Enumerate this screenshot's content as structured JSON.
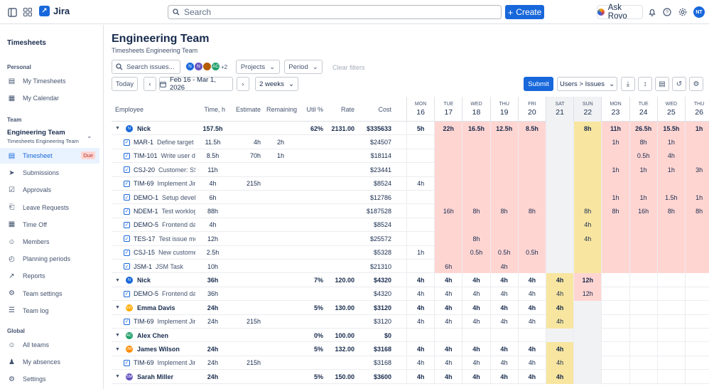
{
  "app": {
    "name": "Jira"
  },
  "topbar": {
    "search_placeholder": "Search",
    "create_label": "Create",
    "rovo_label": "Ask Rovo",
    "user_initials": "NT"
  },
  "sidebar": {
    "title": "Timesheets",
    "personal_label": "Personal",
    "personal": [
      "My Timesheets",
      "My Calendar"
    ],
    "team_label": "Team",
    "team_name": "Engineering Team",
    "team_sub": "Timesheets Engineering Team",
    "team_items": [
      {
        "label": "Timesheet",
        "icon": "table-icon"
      },
      {
        "label": "Submissions",
        "icon": "send-icon"
      },
      {
        "label": "Approvals",
        "icon": "check-square-icon"
      },
      {
        "label": "Leave Requests",
        "icon": "inbox-icon"
      },
      {
        "label": "Time Off",
        "icon": "calendar-icon"
      },
      {
        "label": "Members",
        "icon": "people-icon"
      },
      {
        "label": "Planning periods",
        "icon": "clock-icon"
      },
      {
        "label": "Reports",
        "icon": "chart-icon"
      },
      {
        "label": "Team settings",
        "icon": "gear-icon"
      },
      {
        "label": "Team log",
        "icon": "list-icon"
      }
    ],
    "due_badge": "Due",
    "global_label": "Global",
    "global": [
      "All teams",
      "My absences",
      "Settings"
    ]
  },
  "page": {
    "title": "Engineering Team",
    "subtitle": "Timesheets Engineering Team"
  },
  "filters": {
    "search_placeholder": "Search issues...",
    "avatars": [
      "N",
      "N",
      "",
      "AC"
    ],
    "more": "+2",
    "projects": "Projects",
    "period": "Period",
    "clear": "Clear filters"
  },
  "toolbar": {
    "today": "Today",
    "date_range": "Feb 16 - Mar 1, 2026",
    "range": "2 weeks",
    "submit": "Submit",
    "group_by": "Users > Issues"
  },
  "columns": {
    "employee": "Employee",
    "time": "Time, h",
    "estimate": "Estimate",
    "remaining": "Remaining",
    "util": "Util %",
    "rate": "Rate",
    "cost": "Cost"
  },
  "days": [
    {
      "dow": "MON",
      "d": "16",
      "kind": "w"
    },
    {
      "dow": "TUE",
      "d": "17",
      "kind": "w"
    },
    {
      "dow": "WED",
      "d": "18",
      "kind": "w"
    },
    {
      "dow": "THU",
      "d": "19",
      "kind": "w"
    },
    {
      "dow": "FRI",
      "d": "20",
      "kind": "w"
    },
    {
      "dow": "SAT",
      "d": "21",
      "kind": "sat"
    },
    {
      "dow": "SUN",
      "d": "22",
      "kind": "sun"
    },
    {
      "dow": "MON",
      "d": "23",
      "kind": "w"
    },
    {
      "dow": "TUE",
      "d": "24",
      "kind": "w"
    },
    {
      "dow": "WED",
      "d": "25",
      "kind": "w"
    },
    {
      "dow": "THU",
      "d": "26",
      "kind": "w"
    }
  ],
  "rows": [
    {
      "type": "user",
      "name": "Nick",
      "initials": "N",
      "color": "#1868db",
      "time": "157.5h",
      "est": "",
      "rem": "",
      "util": "62%",
      "rate": "2131.00",
      "cost": "$335633",
      "days": [
        "5h",
        "22h",
        "16.5h",
        "12.5h",
        "8.5h",
        "",
        "8h",
        "11h",
        "26.5h",
        "15.5h",
        "1h"
      ],
      "over": true
    },
    {
      "type": "issue",
      "key": "MAR-1",
      "desc": "Define target a",
      "time": "11.5h",
      "est": "4h",
      "rem": "2h",
      "cost": "$24507",
      "days": [
        "",
        "",
        "",
        "",
        "",
        "",
        "",
        "1h",
        "8h",
        "1h",
        ""
      ],
      "over": true
    },
    {
      "type": "issue",
      "key": "TIM-101",
      "desc": "Write user do",
      "time": "8.5h",
      "est": "70h",
      "rem": "1h",
      "cost": "$18114",
      "days": [
        "",
        "",
        "",
        "",
        "",
        "",
        "",
        "",
        "0.5h",
        "4h",
        ""
      ],
      "over": true
    },
    {
      "type": "issue",
      "key": "CSJ-20",
      "desc": "Customer: SS",
      "time": "11h",
      "est": "",
      "rem": "",
      "cost": "$23441",
      "days": [
        "",
        "",
        "",
        "",
        "",
        "",
        "",
        "1h",
        "1h",
        "1h",
        "3h"
      ],
      "over": true
    },
    {
      "type": "issue",
      "key": "TIM-69",
      "desc": "Implement Jir",
      "time": "4h",
      "est": "215h",
      "rem": "",
      "cost": "$8524",
      "days": [
        "4h",
        "",
        "",
        "",
        "",
        "",
        "",
        "",
        "",
        "",
        ""
      ],
      "over": true
    },
    {
      "type": "issue",
      "key": "DEMO-1",
      "desc": "Setup develo",
      "time": "6h",
      "est": "",
      "rem": "",
      "cost": "$12786",
      "days": [
        "",
        "",
        "",
        "",
        "",
        "",
        "",
        "1h",
        "1h",
        "1.5h",
        "1h"
      ],
      "over": true
    },
    {
      "type": "issue",
      "key": "NDEM-1",
      "desc": "Test worklog",
      "time": "88h",
      "est": "",
      "rem": "",
      "cost": "$187528",
      "days": [
        "",
        "16h",
        "8h",
        "8h",
        "8h",
        "",
        "8h",
        "8h",
        "16h",
        "8h",
        "8h"
      ],
      "over": true
    },
    {
      "type": "issue",
      "key": "DEMO-5",
      "desc": "Frontend da",
      "time": "4h",
      "est": "",
      "rem": "",
      "cost": "$8524",
      "days": [
        "",
        "",
        "",
        "",
        "",
        "",
        "4h",
        "",
        "",
        "",
        ""
      ],
      "over": true
    },
    {
      "type": "issue",
      "key": "TES-17",
      "desc": "Test issue mo",
      "time": "12h",
      "est": "",
      "rem": "",
      "cost": "$25572",
      "days": [
        "",
        "",
        "8h",
        "",
        "",
        "",
        "4h",
        "",
        "",
        "",
        ""
      ],
      "over": true
    },
    {
      "type": "issue",
      "key": "CSJ-15",
      "desc": "New custome",
      "time": "2.5h",
      "est": "",
      "rem": "",
      "cost": "$5328",
      "days": [
        "1h",
        "",
        "0.5h",
        "0.5h",
        "0.5h",
        "",
        "",
        "",
        "",
        "",
        ""
      ],
      "over": true
    },
    {
      "type": "issue",
      "key": "JSM-1",
      "desc": "JSM Task",
      "time": "10h",
      "est": "",
      "rem": "",
      "cost": "$21310",
      "days": [
        "",
        "6h",
        "",
        "4h",
        "",
        "",
        "",
        "",
        "",
        "",
        ""
      ],
      "over": true
    },
    {
      "type": "user",
      "name": "Nick",
      "initials": "N",
      "color": "#1868db",
      "time": "36h",
      "est": "",
      "rem": "",
      "util": "7%",
      "rate": "120.00",
      "cost": "$4320",
      "days": [
        "4h",
        "4h",
        "4h",
        "4h",
        "4h",
        "4h",
        "12h",
        "",
        "",
        "",
        ""
      ],
      "over": false
    },
    {
      "type": "issue",
      "key": "DEMO-5",
      "desc": "Frontend da",
      "time": "36h",
      "est": "",
      "rem": "",
      "cost": "$4320",
      "days": [
        "4h",
        "4h",
        "4h",
        "4h",
        "4h",
        "4h",
        "12h",
        "",
        "",
        "",
        ""
      ],
      "over": false
    },
    {
      "type": "user",
      "name": "Emma Davis",
      "initials": "ED",
      "color": "#ffab00",
      "time": "24h",
      "est": "",
      "rem": "",
      "util": "5%",
      "rate": "130.00",
      "cost": "$3120",
      "days": [
        "4h",
        "4h",
        "4h",
        "4h",
        "4h",
        "4h",
        "",
        "",
        "",
        "",
        ""
      ],
      "over": false
    },
    {
      "type": "issue",
      "key": "TIM-69",
      "desc": "Implement Jir",
      "time": "24h",
      "est": "215h",
      "rem": "",
      "cost": "$3120",
      "days": [
        "4h",
        "4h",
        "4h",
        "4h",
        "4h",
        "4h",
        "",
        "",
        "",
        "",
        ""
      ],
      "over": false
    },
    {
      "type": "user",
      "name": "Alex Chen",
      "initials": "AC",
      "color": "#22a06b",
      "time": "",
      "est": "",
      "rem": "",
      "util": "0%",
      "rate": "100.00",
      "cost": "$0",
      "days": [
        "",
        "",
        "",
        "",
        "",
        "",
        "",
        "",
        "",
        "",
        ""
      ],
      "over": false
    },
    {
      "type": "user",
      "name": "James Wilson",
      "initials": "JW",
      "color": "#ff8b00",
      "time": "24h",
      "est": "",
      "rem": "",
      "util": "5%",
      "rate": "132.00",
      "cost": "$3168",
      "days": [
        "4h",
        "4h",
        "4h",
        "4h",
        "4h",
        "4h",
        "",
        "",
        "",
        "",
        ""
      ],
      "over": false
    },
    {
      "type": "issue",
      "key": "TIM-69",
      "desc": "Implement Jir",
      "time": "24h",
      "est": "215h",
      "rem": "",
      "cost": "$3168",
      "days": [
        "4h",
        "4h",
        "4h",
        "4h",
        "4h",
        "4h",
        "",
        "",
        "",
        "",
        ""
      ],
      "over": false
    },
    {
      "type": "user",
      "name": "Sarah Miller",
      "initials": "SM",
      "color": "#6554c0",
      "time": "24h",
      "est": "",
      "rem": "",
      "util": "5%",
      "rate": "150.00",
      "cost": "$3600",
      "days": [
        "4h",
        "4h",
        "4h",
        "4h",
        "4h",
        "4h",
        "",
        "",
        "",
        "",
        ""
      ],
      "over": false
    }
  ],
  "colors": {
    "accent": "#1868db",
    "over": "#ffd5d2",
    "weekend_sat": "#f1f2f4",
    "sunday": "#f8e6a0",
    "sat_hours": "#f8e6a0",
    "sun_hours": "#ffd5d2"
  }
}
